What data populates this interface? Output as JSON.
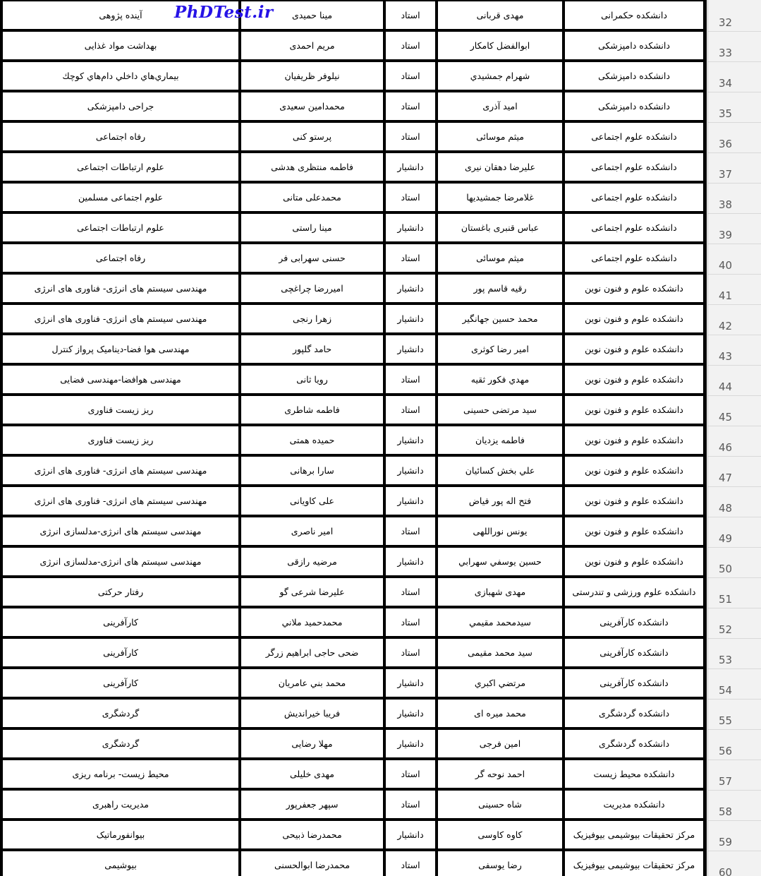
{
  "watermark": {
    "text": "PhDTest.ir",
    "color": "#2613e6"
  },
  "table": {
    "rows": [
      {
        "no": "32",
        "faculty": "دانشکده حکمرانی",
        "professor": "مهدی قربانی",
        "rank": "استاد",
        "person": "مینا حمیدی",
        "field": "آینده پژوهی"
      },
      {
        "no": "33",
        "faculty": "دانشکده دامپزشکی",
        "professor": "ابوالفضل کامکار",
        "rank": "استاد",
        "person": "مریم احمدی",
        "field": "بهداشت مواد غذایی"
      },
      {
        "no": "34",
        "faculty": "دانشکده دامپزشکی",
        "professor": "شهرام جمشیدي",
        "rank": "استاد",
        "person": "نیلوفر ظریفیان",
        "field": "بیماري‌هاي داخلي دام‌هاي کوچك"
      },
      {
        "no": "35",
        "faculty": "دانشکده دامپزشکی",
        "professor": "امید آذری",
        "rank": "استاد",
        "person": "محمدامین سعیدی",
        "field": "جراحی دامپزشکی"
      },
      {
        "no": "36",
        "faculty": "دانشکده علوم اجتماعی",
        "professor": "میثم موسائی",
        "rank": "استاد",
        "person": "پرستو کنی",
        "field": "رفاه اجتماعی"
      },
      {
        "no": "37",
        "faculty": "دانشکده علوم اجتماعی",
        "professor": "علیرضا دهقان نیری",
        "rank": "دانشیار",
        "person": "فاطمه منتظری هدشی",
        "field": "علوم ارتباطات اجتماعی"
      },
      {
        "no": "38",
        "faculty": "دانشکده علوم اجتماعی",
        "professor": "غلامرضا جمشیدیها",
        "rank": "استاد",
        "person": "محمدعلی متانی",
        "field": "علوم اجتماعی مسلمین"
      },
      {
        "no": "39",
        "faculty": "دانشکده علوم اجتماعی",
        "professor": "عباس قنبری باغستان",
        "rank": "دانشیار",
        "person": "مینا راستی",
        "field": "علوم ارتباطات اجتماعی"
      },
      {
        "no": "40",
        "faculty": "دانشکده علوم اجتماعی",
        "professor": "میثم موسائی",
        "rank": "استاد",
        "person": "حسنی سهرابی فر",
        "field": "رفاه اجتماعی"
      },
      {
        "no": "41",
        "faculty": "دانشکده علوم و فنون نوین",
        "professor": "رقیه قاسم پور",
        "rank": "دانشیار",
        "person": "امیررضا چراغچی",
        "field": "مهندسی سیستم های انرژی- فناوری های انرژی"
      },
      {
        "no": "42",
        "faculty": "دانشکده علوم و فنون نوین",
        "professor": "محمد حسین جهانگیر",
        "rank": "دانشیار",
        "person": "زهرا رنجی",
        "field": "مهندسی سیستم های انرژی- فناوری های انرژی"
      },
      {
        "no": "43",
        "faculty": "دانشکده علوم و فنون نوین",
        "professor": "امیر رضا کوثری",
        "rank": "دانشیار",
        "person": "حامد گلپور",
        "field": "مهندسی هوا فضا-دینامیک پرواز کنترل"
      },
      {
        "no": "44",
        "faculty": "دانشکده علوم و فنون نوین",
        "professor": "مهدي فکور ثقیه",
        "rank": "استاد",
        "person": "رویا ثانی",
        "field": "مهندسی هوافضا-مهندسی فضایی"
      },
      {
        "no": "45",
        "faculty": "دانشکده علوم و فنون نوین",
        "professor": "سید مرتضی حسینی",
        "rank": "استاد",
        "person": "فاطمه شاطری",
        "field": "ریز زیست فناوری"
      },
      {
        "no": "46",
        "faculty": "دانشکده علوم و فنون نوین",
        "professor": "فاطمه یزدیان",
        "rank": "دانشیار",
        "person": "حمیده همتی",
        "field": "ریز زیست فناوری"
      },
      {
        "no": "47",
        "faculty": "دانشکده علوم و فنون نوین",
        "professor": "علي بخش کسائیان",
        "rank": "دانشیار",
        "person": "سارا برهانی",
        "field": "مهندسی سیستم های انرژی- فناوری های انرژی"
      },
      {
        "no": "48",
        "faculty": "دانشکده علوم و فنون نوین",
        "professor": "فتح اله پور فیاض",
        "rank": "دانشیار",
        "person": "علی کاویانی",
        "field": "مهندسی سیستم های انرژی- فناوری های انرژی"
      },
      {
        "no": "49",
        "faculty": "دانشکده علوم و فنون نوین",
        "professor": "یونس نوراللهی",
        "rank": "استاد",
        "person": "امیر ناصری",
        "field": "مهندسی سیستم های انرژی-مدلسازی انرژی"
      },
      {
        "no": "50",
        "faculty": "دانشکده علوم و فنون نوین",
        "professor": "حسین یوسفي سهرابي",
        "rank": "دانشیار",
        "person": "مرضیه رازقی",
        "field": "مهندسی سیستم های انرژی-مدلسازی انرژی"
      },
      {
        "no": "51",
        "faculty": "دانشکده علوم ورزشی و تندرستی",
        "professor": "مهدی شهبازی",
        "rank": "استاد",
        "person": "علیرضا شرعی گو",
        "field": "رفتار حرکتی"
      },
      {
        "no": "52",
        "faculty": "دانشکده کارآفرینی",
        "professor": "سیدمحمد مقیمي",
        "rank": "استاد",
        "person": "محمدحمید ملاني",
        "field": "کارآفرینی"
      },
      {
        "no": "53",
        "faculty": "دانشکده کارآفرینی",
        "professor": "سید محمد مقیمی",
        "rank": "استاد",
        "person": "ضحی حاجی ابراهیم زرگر",
        "field": "کارآفرینی"
      },
      {
        "no": "54",
        "faculty": "دانشکده کارآفرینی",
        "professor": "مرتضي اکبري",
        "rank": "دانشیار",
        "person": "محمد بني عامریان",
        "field": "کارآفرینی"
      },
      {
        "no": "55",
        "faculty": "دانشکده گردشگری",
        "professor": "محمد میره ای",
        "rank": "دانشیار",
        "person": "فریبا خیراندیش",
        "field": "گردشگری"
      },
      {
        "no": "56",
        "faculty": "دانشکده گردشگری",
        "professor": "امین فرجی",
        "rank": "دانشیار",
        "person": "مهلا رضایی",
        "field": "گردشگری"
      },
      {
        "no": "57",
        "faculty": "دانشکده محیط زیست",
        "professor": "احمد نوحه گر",
        "rank": "استاد",
        "person": "مهدی خلیلی",
        "field": "محیط زیست- برنامه ریزی"
      },
      {
        "no": "58",
        "faculty": "دانشکده مدیریت",
        "professor": "شاه حسینی",
        "rank": "استاد",
        "person": "سپهر جعفرپور",
        "field": "مدیریت راهبری"
      },
      {
        "no": "59",
        "faculty": "مرکز تحقیقات بیوشیمی بیوفیزیک",
        "professor": "کاوه کاوسی",
        "rank": "دانشیار",
        "person": "محمدرضا ذبیحی",
        "field": "بیوانفورماتیک"
      },
      {
        "no": "60",
        "faculty": "مرکز تحقیقات بیوشیمی بیوفیزیک",
        "professor": "رضا یوسفی",
        "rank": "استاد",
        "person": "محمدرضا ابوالحسنی",
        "field": "بیوشیمی"
      }
    ]
  }
}
